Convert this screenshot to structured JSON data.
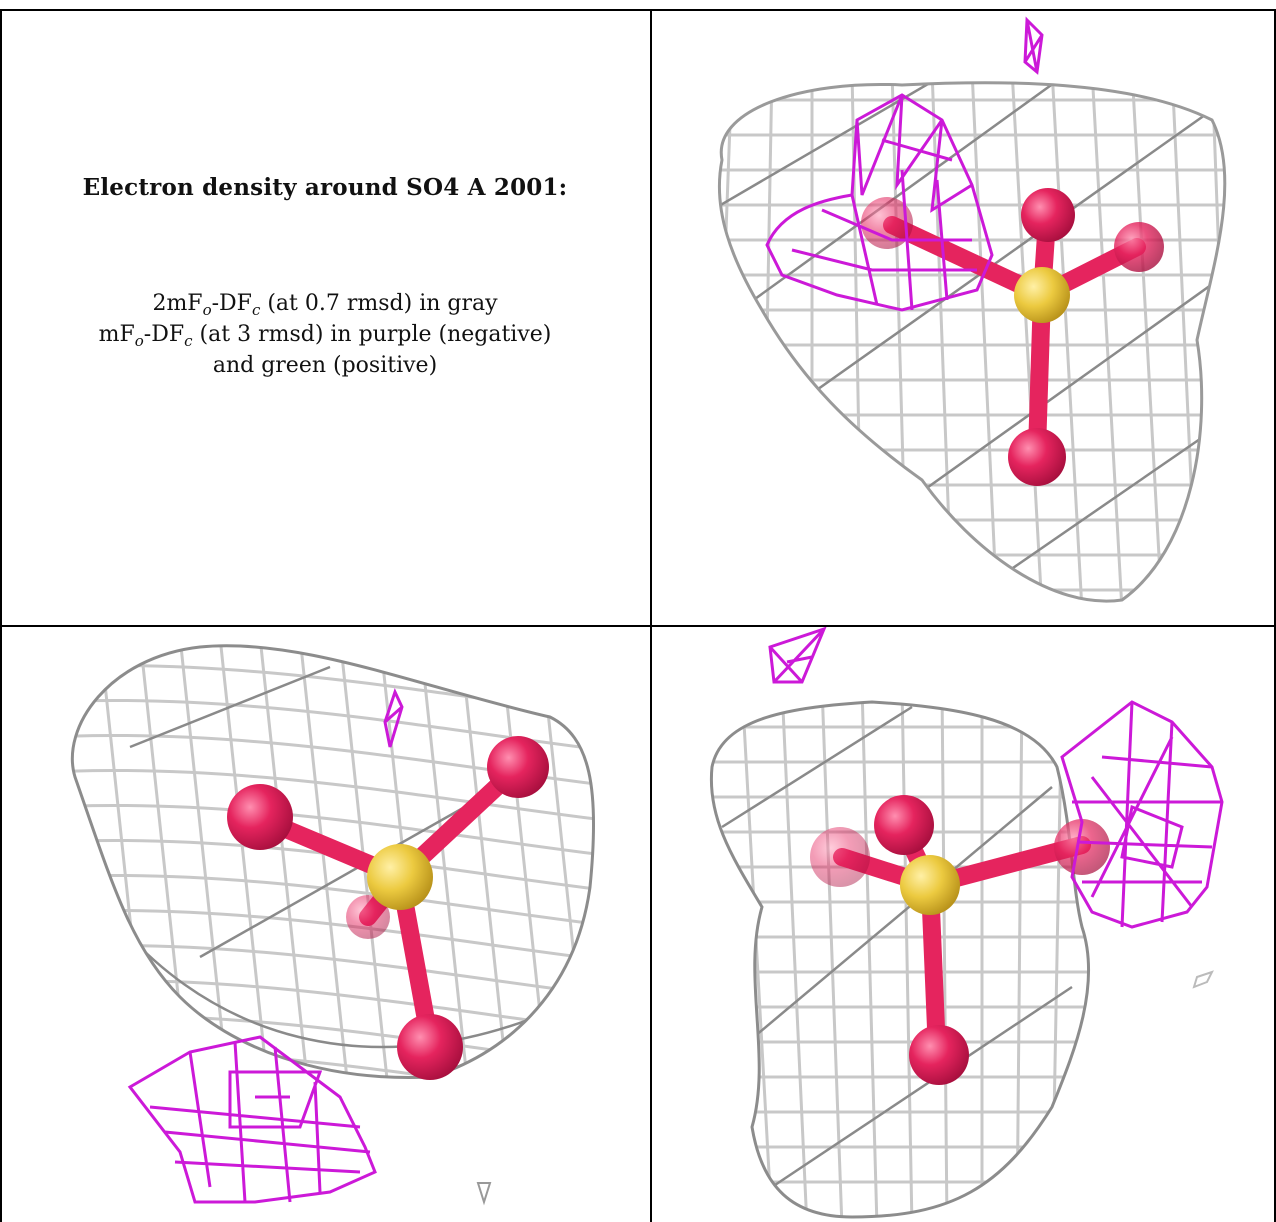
{
  "caption": {
    "title": "Electron density around SO4 A 2001:",
    "line1_prefix": "2mF",
    "line1_sub_o": "o",
    "line1_mid": "-DF",
    "line1_sub_c": "c",
    "line1_suffix": " (at 0.7 rmsd) in gray",
    "line2_prefix": "mF",
    "line2_sub_o": "o",
    "line2_mid": "-DF",
    "line2_sub_c": "c",
    "line2_suffix": " (at 3 rmsd) in purple (negative)",
    "line3": "and green (positive)"
  },
  "colors": {
    "mesh_gray": "#c4c4c4",
    "mesh_dark": "#8a8a8a",
    "mesh_purple": "#cc19d8",
    "oxygen": "#e5245e",
    "sulfur": "#ecca40",
    "border": "#000000"
  },
  "panels": [
    {
      "id": "view-top-right",
      "icon": "sulfate-density-view-1"
    },
    {
      "id": "view-bottom-left",
      "icon": "sulfate-density-view-2"
    },
    {
      "id": "view-bottom-right",
      "icon": "sulfate-density-view-3"
    }
  ]
}
